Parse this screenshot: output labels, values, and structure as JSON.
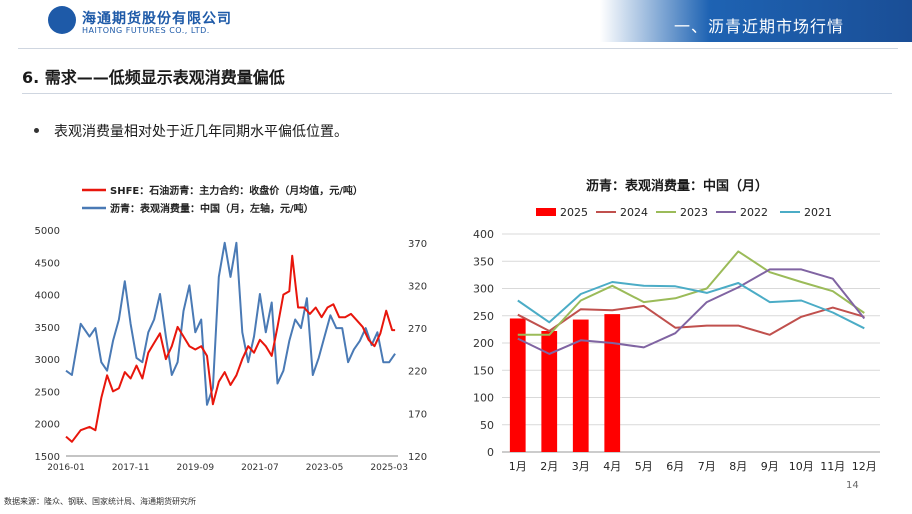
{
  "header": {
    "logo_cn": "海通期货股份有限公司",
    "logo_en": "HAITONG FUTURES CO., LTD.",
    "section": "一、沥青近期市场行情"
  },
  "slide": {
    "title": "6. 需求——低频显示表观消费量偏低",
    "bullet": "表观消费量相对处于近几年同期水平偏低位置。",
    "source": "数据来源：隆众、钢联、国家统计局、海通期货研究所",
    "page_number": "14"
  },
  "chart_data": [
    {
      "type": "line",
      "title": "",
      "legend_position": "top-left",
      "x_ticks": [
        "2016-01",
        "2017-11",
        "2019-09",
        "2021-07",
        "2023-05",
        "2025-03"
      ],
      "x_range": [
        "2016-01",
        "2025-06"
      ],
      "y_left": {
        "ticks": [
          1500,
          2000,
          2500,
          3000,
          3500,
          4000,
          4500,
          5000
        ],
        "range": [
          1500,
          5000
        ]
      },
      "y_right": {
        "ticks": [
          120,
          170,
          220,
          270,
          320,
          370
        ],
        "range": [
          120,
          385
        ]
      },
      "series": [
        {
          "name": "SHFE：石油沥青：主力合约：收盘价（月均值，元/吨）",
          "axis": "left",
          "color": "#e8160c",
          "values": [
            [
              "2016-01",
              1800
            ],
            [
              "2016-03",
              1720
            ],
            [
              "2016-06",
              1900
            ],
            [
              "2016-09",
              1950
            ],
            [
              "2016-11",
              1900
            ],
            [
              "2017-01",
              2400
            ],
            [
              "2017-03",
              2750
            ],
            [
              "2017-05",
              2500
            ],
            [
              "2017-07",
              2550
            ],
            [
              "2017-09",
              2800
            ],
            [
              "2017-11",
              2700
            ],
            [
              "2018-01",
              2900
            ],
            [
              "2018-03",
              2700
            ],
            [
              "2018-05",
              3100
            ],
            [
              "2018-07",
              3250
            ],
            [
              "2018-09",
              3400
            ],
            [
              "2018-11",
              3000
            ],
            [
              "2019-01",
              3200
            ],
            [
              "2019-03",
              3500
            ],
            [
              "2019-05",
              3350
            ],
            [
              "2019-07",
              3200
            ],
            [
              "2019-09",
              3150
            ],
            [
              "2019-11",
              3200
            ],
            [
              "2020-01",
              3050
            ],
            [
              "2020-03",
              2300
            ],
            [
              "2020-05",
              2650
            ],
            [
              "2020-07",
              2800
            ],
            [
              "2020-09",
              2600
            ],
            [
              "2020-11",
              2750
            ],
            [
              "2021-01",
              3000
            ],
            [
              "2021-03",
              3200
            ],
            [
              "2021-05",
              3100
            ],
            [
              "2021-07",
              3300
            ],
            [
              "2021-09",
              3200
            ],
            [
              "2021-11",
              3050
            ],
            [
              "2022-01",
              3500
            ],
            [
              "2022-03",
              4000
            ],
            [
              "2022-05",
              4050
            ],
            [
              "2022-06",
              4600
            ],
            [
              "2022-08",
              3800
            ],
            [
              "2022-10",
              3800
            ],
            [
              "2022-12",
              3700
            ],
            [
              "2023-02",
              3800
            ],
            [
              "2023-04",
              3650
            ],
            [
              "2023-06",
              3800
            ],
            [
              "2023-08",
              3850
            ],
            [
              "2023-10",
              3650
            ],
            [
              "2023-12",
              3650
            ],
            [
              "2024-02",
              3700
            ],
            [
              "2024-04",
              3600
            ],
            [
              "2024-06",
              3500
            ],
            [
              "2024-08",
              3300
            ],
            [
              "2024-10",
              3200
            ],
            [
              "2024-12",
              3400
            ],
            [
              "2025-02",
              3750
            ],
            [
              "2025-04",
              3450
            ],
            [
              "2025-05",
              3450
            ]
          ]
        },
        {
          "name": "沥青：表观消费量：中国（月，左轴，元/吨）",
          "axis": "right",
          "color": "#4a7ab5",
          "values": [
            [
              "2016-01",
              220
            ],
            [
              "2016-03",
              215
            ],
            [
              "2016-06",
              275
            ],
            [
              "2016-09",
              260
            ],
            [
              "2016-11",
              270
            ],
            [
              "2017-01",
              230
            ],
            [
              "2017-03",
              220
            ],
            [
              "2017-05",
              255
            ],
            [
              "2017-07",
              280
            ],
            [
              "2017-09",
              325
            ],
            [
              "2017-11",
              275
            ],
            [
              "2018-01",
              235
            ],
            [
              "2018-03",
              230
            ],
            [
              "2018-05",
              265
            ],
            [
              "2018-07",
              280
            ],
            [
              "2018-09",
              310
            ],
            [
              "2018-11",
              260
            ],
            [
              "2019-01",
              215
            ],
            [
              "2019-03",
              230
            ],
            [
              "2019-05",
              290
            ],
            [
              "2019-07",
              320
            ],
            [
              "2019-09",
              265
            ],
            [
              "2019-11",
              280
            ],
            [
              "2020-01",
              180
            ],
            [
              "2020-03",
              200
            ],
            [
              "2020-05",
              330
            ],
            [
              "2020-07",
              370
            ],
            [
              "2020-09",
              330
            ],
            [
              "2020-11",
              370
            ],
            [
              "2021-01",
              265
            ],
            [
              "2021-03",
              230
            ],
            [
              "2021-05",
              260
            ],
            [
              "2021-07",
              310
            ],
            [
              "2021-09",
              265
            ],
            [
              "2021-11",
              300
            ],
            [
              "2022-01",
              205
            ],
            [
              "2022-03",
              220
            ],
            [
              "2022-05",
              255
            ],
            [
              "2022-07",
              280
            ],
            [
              "2022-09",
              270
            ],
            [
              "2022-11",
              305
            ],
            [
              "2023-01",
              215
            ],
            [
              "2023-03",
              235
            ],
            [
              "2023-05",
              260
            ],
            [
              "2023-07",
              285
            ],
            [
              "2023-09",
              270
            ],
            [
              "2023-11",
              270
            ],
            [
              "2024-01",
              230
            ],
            [
              "2024-03",
              245
            ],
            [
              "2024-05",
              255
            ],
            [
              "2024-07",
              270
            ],
            [
              "2024-09",
              250
            ],
            [
              "2024-11",
              265
            ],
            [
              "2025-01",
              230
            ],
            [
              "2025-03",
              230
            ],
            [
              "2025-05",
              240
            ]
          ]
        }
      ]
    },
    {
      "type": "bar+line",
      "title": "沥青：表观消费量：中国（月）",
      "legend_position": "top",
      "categories": [
        "1月",
        "2月",
        "3月",
        "4月",
        "5月",
        "6月",
        "7月",
        "8月",
        "9月",
        "10月",
        "11月",
        "12月"
      ],
      "y_ticks": [
        0,
        50,
        100,
        150,
        200,
        250,
        300,
        350,
        400
      ],
      "ylim": [
        0,
        400
      ],
      "grid": true,
      "series": [
        {
          "name": "2025",
          "kind": "bar",
          "color": "#ff0000",
          "values": [
            245,
            222,
            243,
            253,
            null,
            null,
            null,
            null,
            null,
            null,
            null,
            null
          ]
        },
        {
          "name": "2024",
          "kind": "line",
          "color": "#c0504d",
          "values": [
            252,
            222,
            262,
            260,
            268,
            228,
            232,
            232,
            215,
            248,
            265,
            248
          ]
        },
        {
          "name": "2023",
          "kind": "line",
          "color": "#9bbb59",
          "values": [
            215,
            215,
            278,
            305,
            275,
            282,
            300,
            368,
            330,
            312,
            295,
            255
          ]
        },
        {
          "name": "2022",
          "kind": "line",
          "color": "#8064a2",
          "values": [
            208,
            180,
            205,
            200,
            192,
            218,
            275,
            302,
            335,
            335,
            318,
            245
          ]
        },
        {
          "name": "2021",
          "kind": "line",
          "color": "#4bacc6",
          "values": [
            278,
            238,
            290,
            312,
            305,
            304,
            292,
            310,
            275,
            278,
            256,
            227
          ]
        }
      ]
    }
  ]
}
